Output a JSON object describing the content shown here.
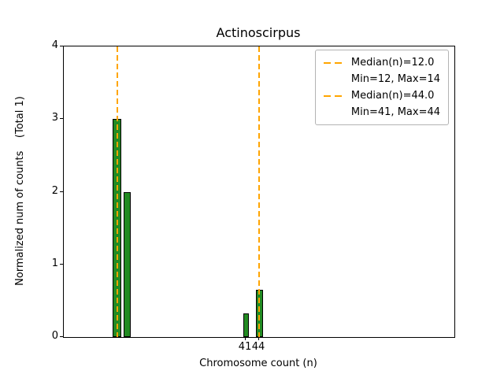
{
  "chart_data": {
    "type": "bar",
    "title": "Actinoscirpus",
    "xlabel": "Chromosome count (n)",
    "ylabel": "Normalized num of counts    (Total 1)",
    "xlim": [
      0,
      88
    ],
    "ylim": [
      0,
      4
    ],
    "yticks": [
      0,
      1,
      2,
      3,
      4
    ],
    "xticks": [
      41,
      44
    ],
    "grid": false,
    "bar_color": "#228B22",
    "bar_edge_color": "#000000",
    "line_color": "#FFA500",
    "bars": [
      {
        "x0": 11.0,
        "x1": 13.0,
        "height": 3.0
      },
      {
        "x0": 13.5,
        "x1": 15.0,
        "height": 2.0
      },
      {
        "x0": 40.5,
        "x1": 41.7,
        "height": 0.33
      },
      {
        "x0": 43.3,
        "x1": 44.8,
        "height": 0.65
      }
    ],
    "median_lines": [
      {
        "x": 12.0,
        "label": "Median(n)=12.0",
        "sublabel": "Min=12, Max=14"
      },
      {
        "x": 44.0,
        "label": "Median(n)=44.0",
        "sublabel": "Min=41, Max=44"
      }
    ],
    "legend": {
      "position": "upper right",
      "entries": [
        {
          "label": "Median(n)=12.0",
          "sublabel": "Min=12, Max=14"
        },
        {
          "label": "Median(n)=44.0",
          "sublabel": "Min=41, Max=44"
        }
      ]
    }
  }
}
